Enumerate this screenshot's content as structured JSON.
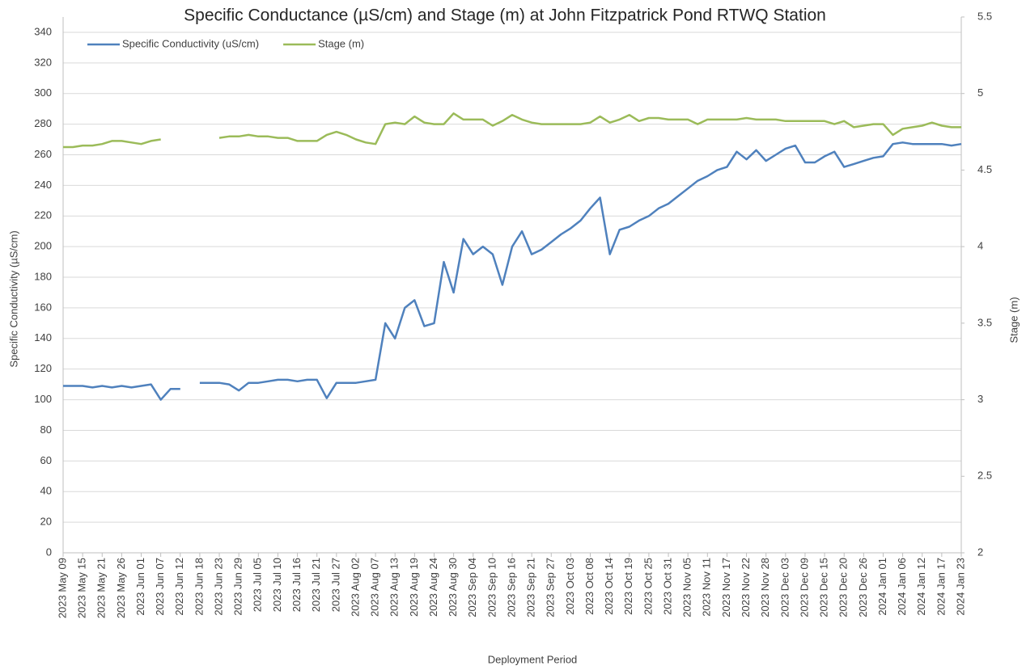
{
  "chart_data": {
    "type": "line",
    "title": "Specific Conductance (µS/cm) and Stage (m) at John Fitzpatrick Pond RTWQ Station",
    "x_label": "Deployment Period",
    "y_label": "Specific Conductivity (µS/cm)",
    "y2_label": "Stage (m)",
    "categories": [
      "2023 May 09",
      null,
      "2023 May 15",
      null,
      "2023 May 21",
      null,
      "2023 May 26",
      null,
      "2023 Jun 01",
      null,
      "2023 Jun 07",
      null,
      "2023 Jun 12",
      null,
      "2023 Jun 18",
      null,
      "2023 Jun 23",
      null,
      "2023 Jun 29",
      null,
      "2023 Jul 05",
      null,
      "2023 Jul 10",
      null,
      "2023 Jul 16",
      null,
      "2023 Jul 21",
      null,
      "2023 Jul 27",
      null,
      "2023 Aug 02",
      null,
      "2023 Aug 07",
      null,
      "2023 Aug 13",
      null,
      "2023 Aug 19",
      null,
      "2023 Aug 24",
      null,
      "2023 Aug 30",
      null,
      "2023 Sep 04",
      null,
      "2023 Sep 10",
      null,
      "2023 Sep 16",
      null,
      "2023 Sep 21",
      null,
      "2023 Sep 27",
      null,
      "2023 Oct 03",
      null,
      "2023 Oct 08",
      null,
      "2023 Oct 14",
      null,
      "2023 Oct 19",
      null,
      "2023 Oct 25",
      null,
      "2023 Oct 31",
      null,
      "2023 Nov 05",
      null,
      "2023 Nov 11",
      null,
      "2023 Nov 17",
      null,
      "2023 Nov 22",
      null,
      "2023 Nov 28",
      null,
      "2023 Dec 03",
      null,
      "2023 Dec 09",
      null,
      "2023 Dec 15",
      null,
      "2023 Dec 20",
      null,
      "2023 Dec 26",
      null,
      "2024 Jan 01",
      null,
      "2024 Jan 06",
      null,
      "2024 Jan 12",
      null,
      "2024 Jan 17",
      null,
      "2024 Jan 23"
    ],
    "series": [
      {
        "name": "Specific Conductivity (uS/cm)",
        "color": "#4f81bd",
        "axis": "y",
        "values": [
          109,
          109,
          109,
          108,
          109,
          108,
          109,
          108,
          109,
          110,
          100,
          107,
          107,
          null,
          111,
          111,
          111,
          110,
          106,
          111,
          111,
          112,
          113,
          113,
          112,
          113,
          113,
          101,
          111,
          111,
          111,
          112,
          113,
          150,
          140,
          160,
          165,
          148,
          150,
          190,
          170,
          205,
          195,
          200,
          195,
          175,
          200,
          210,
          195,
          198,
          203,
          208,
          212,
          217,
          225,
          232,
          195,
          211,
          213,
          217,
          220,
          225,
          228,
          233,
          238,
          243,
          246,
          250,
          252,
          262,
          257,
          263,
          256,
          260,
          264,
          266,
          255,
          255,
          259,
          262,
          252,
          254,
          256,
          258,
          259,
          267,
          268,
          267,
          267,
          267,
          267,
          266,
          267
        ]
      },
      {
        "name": "Stage (m)",
        "color": "#9bbb59",
        "axis": "y2",
        "values": [
          4.65,
          4.65,
          4.66,
          4.66,
          4.67,
          4.69,
          4.69,
          4.68,
          4.67,
          4.69,
          4.7,
          null,
          null,
          null,
          4.7,
          null,
          4.71,
          4.72,
          4.72,
          4.73,
          4.72,
          4.72,
          4.71,
          4.71,
          4.69,
          4.69,
          4.69,
          4.73,
          4.75,
          4.73,
          4.7,
          4.68,
          4.67,
          4.8,
          4.81,
          4.8,
          4.85,
          4.81,
          4.8,
          4.8,
          4.87,
          4.83,
          4.83,
          4.83,
          4.79,
          4.82,
          4.86,
          4.83,
          4.81,
          4.8,
          4.8,
          4.8,
          4.8,
          4.8,
          4.81,
          4.85,
          4.81,
          4.83,
          4.86,
          4.82,
          4.84,
          4.84,
          4.83,
          4.83,
          4.83,
          4.8,
          4.83,
          4.83,
          4.83,
          4.83,
          4.84,
          4.83,
          4.83,
          4.83,
          4.82,
          4.82,
          4.82,
          4.82,
          4.82,
          4.8,
          4.82,
          4.78,
          4.79,
          4.8,
          4.8,
          4.73,
          4.77,
          4.78,
          4.79,
          4.81,
          4.79,
          4.78,
          4.78
        ]
      }
    ],
    "ylim": [
      0,
      350
    ],
    "yticks": [
      0,
      20,
      40,
      60,
      80,
      100,
      120,
      140,
      160,
      180,
      200,
      220,
      240,
      260,
      280,
      300,
      320,
      340
    ],
    "y2lim": [
      2,
      5.5
    ],
    "y2ticks": [
      2,
      2.5,
      3,
      3.5,
      4,
      4.5,
      5,
      5.5
    ],
    "grid": true,
    "legend": "top-left"
  }
}
